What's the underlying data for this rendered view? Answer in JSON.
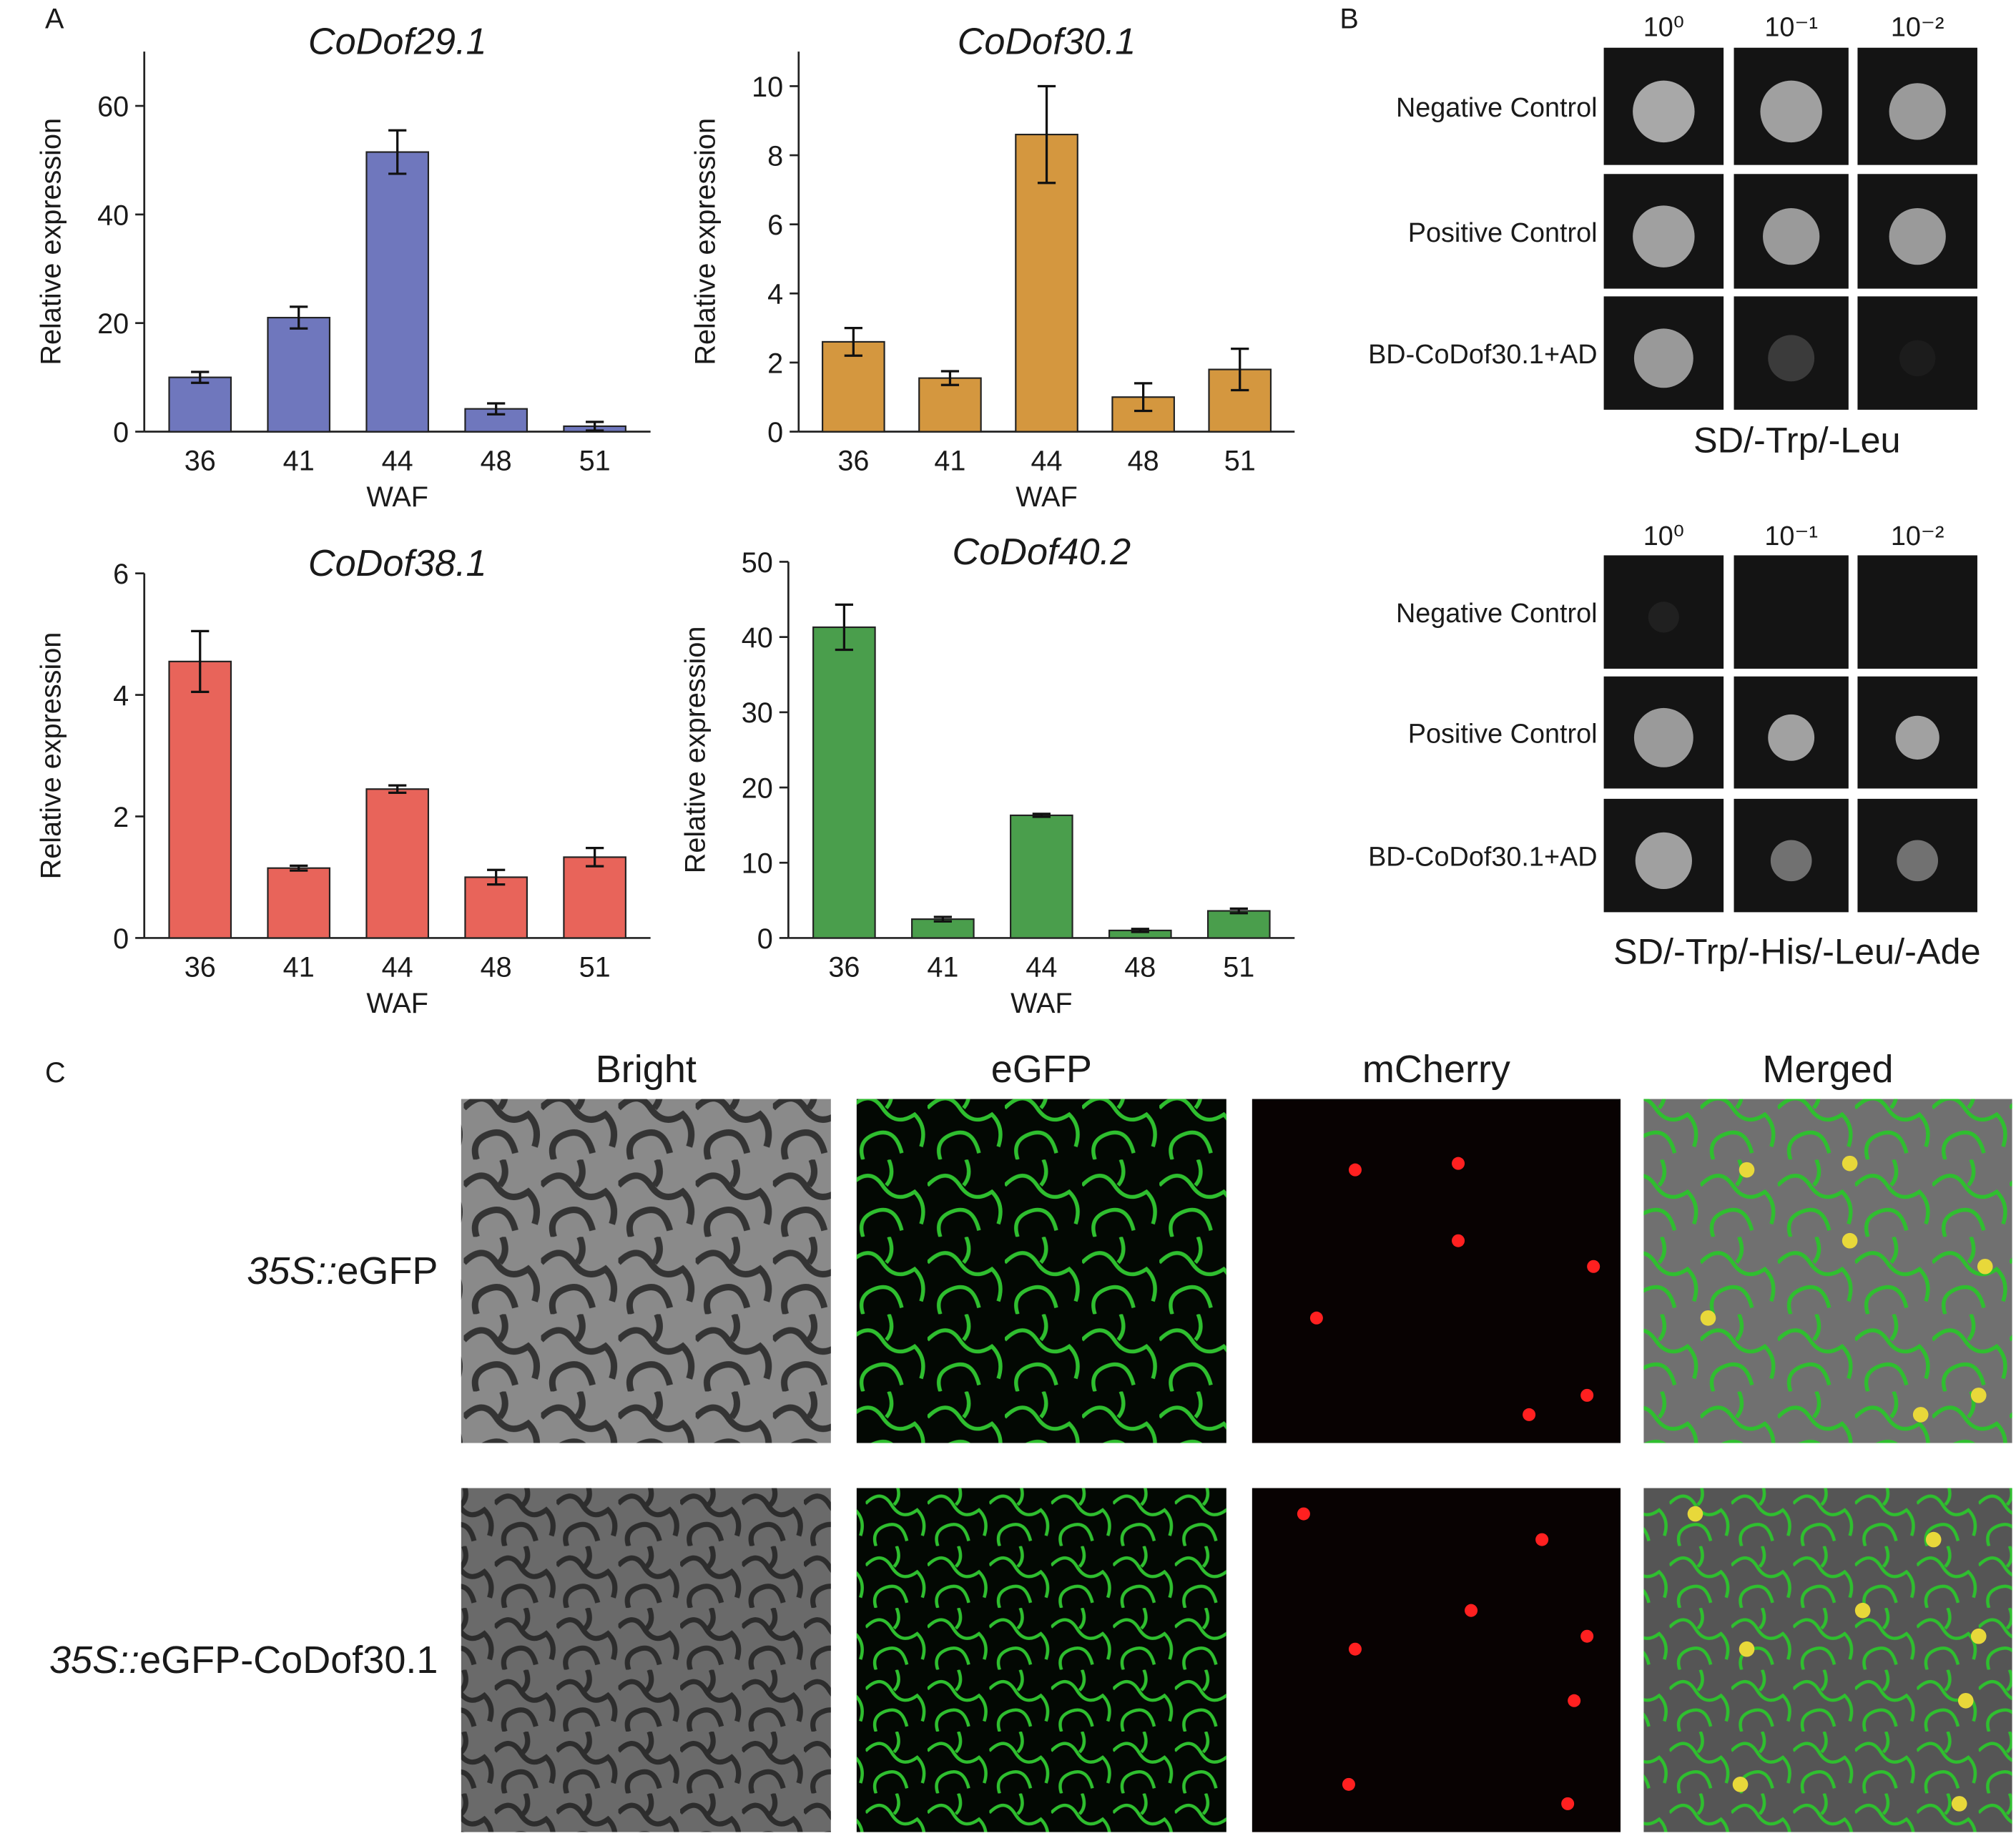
{
  "chart_data": [
    {
      "type": "bar",
      "title": "CoDof29.1",
      "y_label": "Relative expression",
      "x_label": "WAF",
      "categories": [
        "36",
        "41",
        "44",
        "48",
        "51"
      ],
      "values": [
        10,
        21,
        51.5,
        4.2,
        1
      ],
      "errors": [
        1,
        2,
        4,
        1,
        0.8
      ],
      "color": "#6f77bd",
      "ylim": [
        0,
        70
      ],
      "yticks": [
        0,
        20,
        40,
        60
      ]
    },
    {
      "type": "bar",
      "title": "CoDof30.1",
      "y_label": "Relative expression",
      "x_label": "WAF",
      "categories": [
        "36",
        "41",
        "44",
        "48",
        "51"
      ],
      "values": [
        2.6,
        1.55,
        8.6,
        1.0,
        1.8
      ],
      "errors": [
        0.4,
        0.2,
        1.4,
        0.4,
        0.6
      ],
      "color": "#d4973f",
      "ylim": [
        0,
        11
      ],
      "yticks": [
        0,
        2,
        4,
        6,
        8,
        10
      ]
    },
    {
      "type": "bar",
      "title": "CoDof38.1",
      "y_label": "Relative expression",
      "x_label": "WAF",
      "categories": [
        "36",
        "41",
        "44",
        "48",
        "51"
      ],
      "values": [
        4.55,
        1.15,
        2.45,
        1.0,
        1.33
      ],
      "errors": [
        0.5,
        0.04,
        0.06,
        0.12,
        0.15
      ],
      "color": "#e8645a",
      "ylim": [
        0,
        6
      ],
      "yticks": [
        0,
        2,
        4,
        6
      ]
    },
    {
      "type": "bar",
      "title": "CoDof40.2",
      "y_label": "Relative expression",
      "x_label": "WAF",
      "categories": [
        "36",
        "41",
        "44",
        "48",
        "51"
      ],
      "values": [
        41.3,
        2.5,
        16.3,
        1.0,
        3.6
      ],
      "errors": [
        3,
        0.3,
        0.2,
        0.2,
        0.3
      ],
      "color": "#4a9e4c",
      "ylim": [
        0,
        50
      ],
      "yticks": [
        0,
        10,
        20,
        30,
        40,
        50
      ]
    }
  ],
  "panel_labels": [
    "A",
    "B",
    "C"
  ],
  "panel_b": {
    "screens": [
      {
        "dilutions": [
          "10⁰",
          "10⁻¹",
          "10⁻²"
        ],
        "rows": [
          "Negative Control",
          "Positive Control",
          "BD-CoDof30.1+AD"
        ],
        "medium": "SD/-Trp/-Leu"
      },
      {
        "dilutions": [
          "10⁰",
          "10⁻¹",
          "10⁻²"
        ],
        "rows": [
          "Negative Control",
          "Positive Control",
          "BD-CoDof30.1+AD"
        ],
        "medium": "SD/-Trp/-His/-Leu/-Ade"
      }
    ]
  },
  "panel_c": {
    "columns": [
      "Bright",
      "eGFP",
      "mCherry",
      "Merged"
    ],
    "rows": [
      {
        "promoter": "35S::",
        "construct": "eGFP"
      },
      {
        "promoter": "35S::",
        "construct": "eGFP-CoDof30.1"
      }
    ]
  }
}
